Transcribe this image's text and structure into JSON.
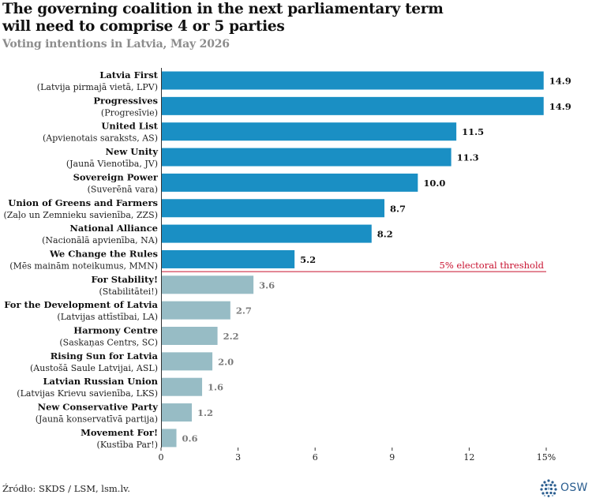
{
  "title_line1": "The governing coalition in the next parliamentary term",
  "title_line2": "will need to comprise 4 or 5 parties",
  "subtitle": "Voting intentions in Latvia, May 2026",
  "source": "Źródło: SKDS / LSM, lsm.lv.",
  "logo_text": "OSW",
  "colors": {
    "above_threshold": "#1a8fc4",
    "below_threshold": "#97bcc5",
    "threshold_line": "#c8102e",
    "value_above": "#111111",
    "value_below": "#7a7a7a"
  },
  "chart_data": {
    "type": "bar",
    "orientation": "horizontal",
    "categories": [
      {
        "name": "Latvia First",
        "local": "(Latvija pirmajā vietā, LPV)"
      },
      {
        "name": "Progressives",
        "local": "(Progresīvie)"
      },
      {
        "name": "United List",
        "local": "(Apvienotais saraksts, AS)"
      },
      {
        "name": "New Unity",
        "local": "(Jaunā Vienotība, JV)"
      },
      {
        "name": "Sovereign Power",
        "local": "(Suverēnā vara)"
      },
      {
        "name": "Union of Greens and Farmers",
        "local": "(Zaļo un Zemnieku savienība, ZZS)"
      },
      {
        "name": "National Alliance",
        "local": "(Nacionālā apvienība, NA)"
      },
      {
        "name": "We Change the Rules",
        "local": "(Mēs mainām noteikumus, MMN)"
      },
      {
        "name": "For Stability!",
        "local": "(Stabilitātei!)"
      },
      {
        "name": "For the Development of Latvia",
        "local": "(Latvijas attīstībai, LA)"
      },
      {
        "name": "Harmony Centre",
        "local": "(Saskaņas Centrs, SC)"
      },
      {
        "name": "Rising Sun for Latvia",
        "local": "(Austošā Saule Latvijai, ASL)"
      },
      {
        "name": "Latvian Russian Union",
        "local": "(Latvijas Krievu savienība, LKS)"
      },
      {
        "name": "New Conservative Party",
        "local": "(Jaunā konservatīvā partija)"
      },
      {
        "name": "Movement For!",
        "local": "(Kustība Par!)"
      }
    ],
    "values": [
      14.9,
      14.9,
      11.5,
      11.3,
      10.0,
      8.7,
      8.2,
      5.2,
      3.6,
      2.7,
      2.2,
      2.0,
      1.6,
      1.2,
      0.6
    ],
    "value_labels": [
      "14.9",
      "14.9",
      "11.5",
      "11.3",
      "10.0",
      "8.7",
      "8.2",
      "5.2",
      "3.6",
      "2.7",
      "2.2",
      "2.0",
      "1.6",
      "1.2",
      "0.6"
    ],
    "threshold": 5,
    "threshold_label": "5% electoral threshold",
    "xlim": [
      0,
      15
    ],
    "xticks": [
      0,
      3,
      6,
      9,
      12,
      15
    ],
    "xtick_labels": [
      "0",
      "3",
      "6",
      "9",
      "12",
      "15%"
    ],
    "grid": false
  }
}
